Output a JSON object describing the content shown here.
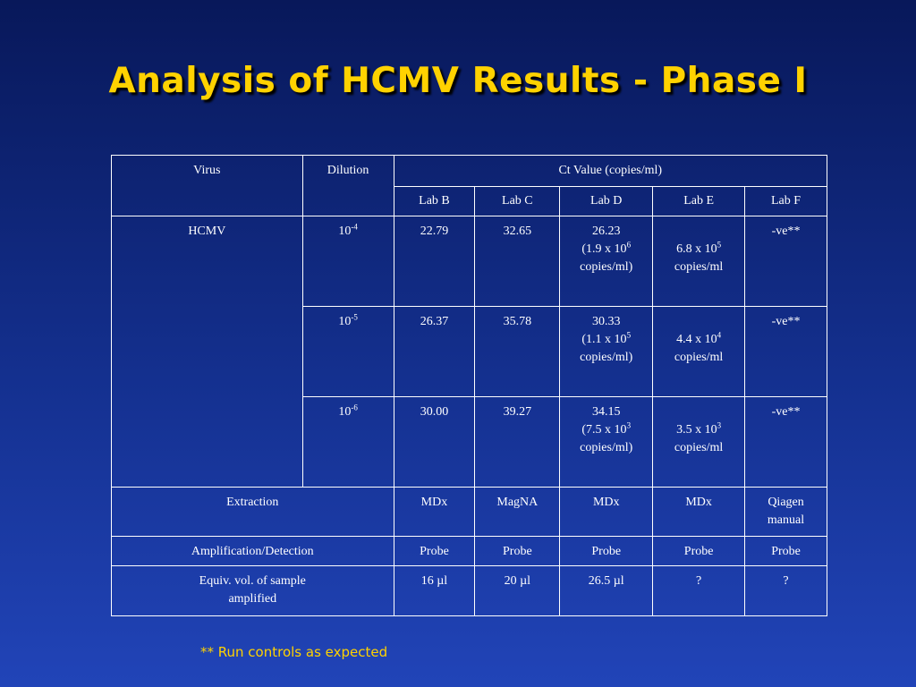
{
  "title": "Analysis of HCMV Results - Phase I",
  "table": {
    "columns": {
      "virus": "Virus",
      "dilution": "Dilution",
      "ct_value": "Ct Value (copies/ml)",
      "labs": [
        "Lab B",
        "Lab C",
        "Lab D",
        "Lab E",
        "Lab F"
      ]
    },
    "virus": "HCMV",
    "dilution_rows": [
      {
        "dilution": {
          "base": "10",
          "exp": "-4"
        },
        "lab_b": "22.79",
        "lab_c": "32.65",
        "lab_d": {
          "ct": "26.23",
          "copies": "(1.9 x 10",
          "exp": "6",
          "unit": "copies/ml)"
        },
        "lab_e": {
          "copies": "6.8 x 10",
          "exp": "5",
          "unit": "copies/ml"
        },
        "lab_f": "-ve**"
      },
      {
        "dilution": {
          "base": "10",
          "exp": "-5"
        },
        "lab_b": "26.37",
        "lab_c": "35.78",
        "lab_d": {
          "ct": "30.33",
          "copies": "(1.1 x 10",
          "exp": "5",
          "unit": "copies/ml)"
        },
        "lab_e": {
          "copies": "4.4 x 10",
          "exp": "4",
          "unit": "copies/ml"
        },
        "lab_f": "-ve**"
      },
      {
        "dilution": {
          "base": "10",
          "exp": "-6"
        },
        "lab_b": "30.00",
        "lab_c": "39.27",
        "lab_d": {
          "ct": "34.15",
          "copies": "(7.5 x 10",
          "exp": "3",
          "unit": "copies/ml)"
        },
        "lab_e": {
          "copies": "3.5 x 10",
          "exp": "3",
          "unit": "copies/ml"
        },
        "lab_f": "-ve**"
      }
    ],
    "method_rows": [
      {
        "label": "Extraction",
        "values": [
          "MDx",
          "MagNA",
          "MDx",
          "MDx",
          "Qiagen manual"
        ]
      },
      {
        "label": "Amplification/Detection",
        "values": [
          "Probe",
          "Probe",
          "Probe",
          "Probe",
          "Probe"
        ]
      },
      {
        "label": "Equiv. vol. of sample amplified",
        "values": [
          "16 µl",
          "20 µl",
          "26.5 µl",
          "?",
          "?"
        ]
      }
    ]
  },
  "footnote": "** Run controls as expected"
}
